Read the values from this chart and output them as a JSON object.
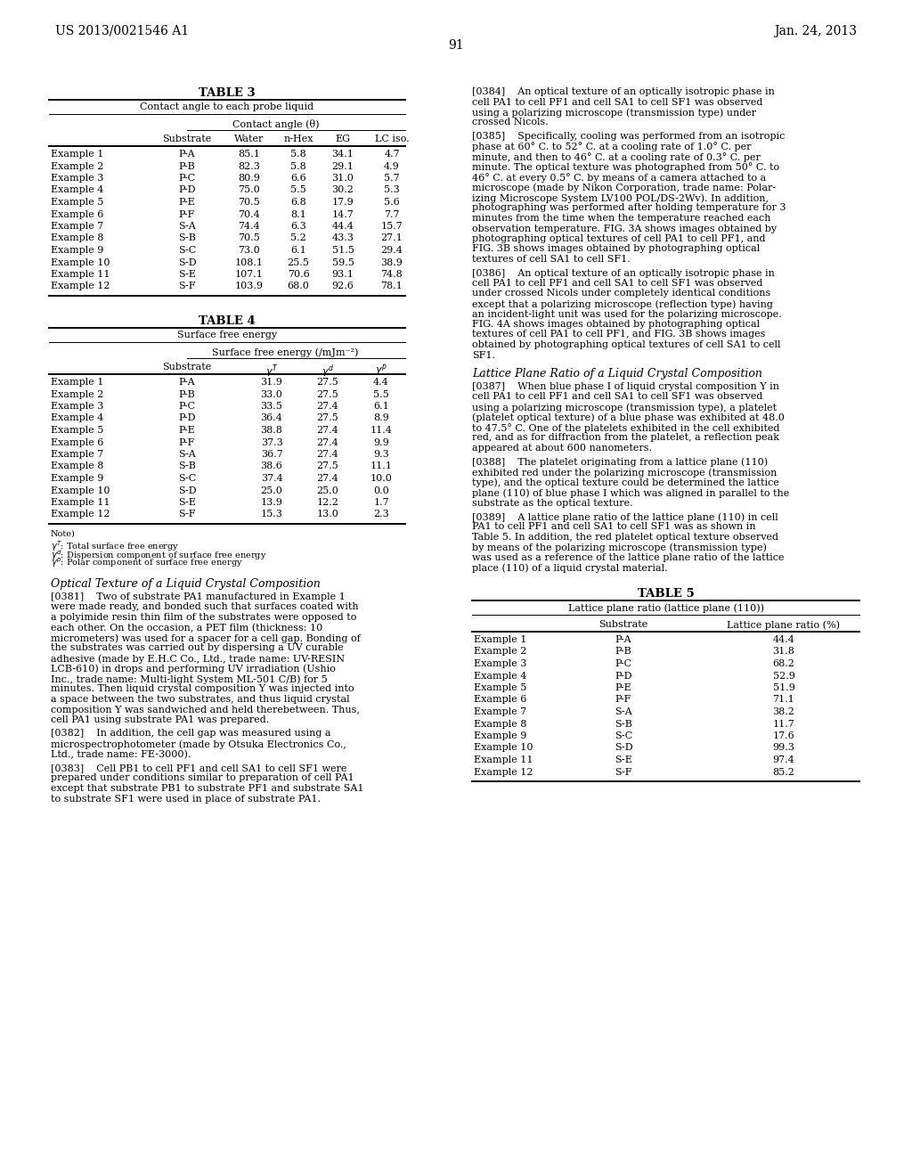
{
  "page_header_left": "US 2013/0021546 A1",
  "page_header_right": "Jan. 24, 2013",
  "page_number": "91",
  "background_color": "#ffffff",
  "table3": {
    "title": "TABLE 3",
    "subtitle": "Contact angle to each probe liquid",
    "col_group_header": "Contact angle (θ)",
    "col_headers": [
      "Substrate",
      "Water",
      "n-Hex",
      "EG",
      "LC iso."
    ],
    "rows": [
      [
        "Example 1",
        "P-A",
        "85.1",
        "5.8",
        "34.1",
        "4.7"
      ],
      [
        "Example 2",
        "P-B",
        "82.3",
        "5.8",
        "29.1",
        "4.9"
      ],
      [
        "Example 3",
        "P-C",
        "80.9",
        "6.6",
        "31.0",
        "5.7"
      ],
      [
        "Example 4",
        "P-D",
        "75.0",
        "5.5",
        "30.2",
        "5.3"
      ],
      [
        "Example 5",
        "P-E",
        "70.5",
        "6.8",
        "17.9",
        "5.6"
      ],
      [
        "Example 6",
        "P-F",
        "70.4",
        "8.1",
        "14.7",
        "7.7"
      ],
      [
        "Example 7",
        "S-A",
        "74.4",
        "6.3",
        "44.4",
        "15.7"
      ],
      [
        "Example 8",
        "S-B",
        "70.5",
        "5.2",
        "43.3",
        "27.1"
      ],
      [
        "Example 9",
        "S-C",
        "73.0",
        "6.1",
        "51.5",
        "29.4"
      ],
      [
        "Example 10",
        "S-D",
        "108.1",
        "25.5",
        "59.5",
        "38.9"
      ],
      [
        "Example 11",
        "S-E",
        "107.1",
        "70.6",
        "93.1",
        "74.8"
      ],
      [
        "Example 12",
        "S-F",
        "103.9",
        "68.0",
        "92.6",
        "78.1"
      ]
    ]
  },
  "table4": {
    "title": "TABLE 4",
    "subtitle": "Surface free energy",
    "col_group_header": "Surface free energy (/mJm⁻²)",
    "rows": [
      [
        "Example 1",
        "P-A",
        "31.9",
        "27.5",
        "4.4"
      ],
      [
        "Example 2",
        "P-B",
        "33.0",
        "27.5",
        "5.5"
      ],
      [
        "Example 3",
        "P-C",
        "33.5",
        "27.4",
        "6.1"
      ],
      [
        "Example 4",
        "P-D",
        "36.4",
        "27.5",
        "8.9"
      ],
      [
        "Example 5",
        "P-E",
        "38.8",
        "27.4",
        "11.4"
      ],
      [
        "Example 6",
        "P-F",
        "37.3",
        "27.4",
        "9.9"
      ],
      [
        "Example 7",
        "S-A",
        "36.7",
        "27.4",
        "9.3"
      ],
      [
        "Example 8",
        "S-B",
        "38.6",
        "27.5",
        "11.1"
      ],
      [
        "Example 9",
        "S-C",
        "37.4",
        "27.4",
        "10.0"
      ],
      [
        "Example 10",
        "S-D",
        "25.0",
        "25.0",
        "0.0"
      ],
      [
        "Example 11",
        "S-E",
        "13.9",
        "12.2",
        "1.7"
      ],
      [
        "Example 12",
        "S-F",
        "15.3",
        "13.0",
        "2.3"
      ]
    ]
  },
  "table5": {
    "title": "TABLE 5",
    "subtitle": "Lattice plane ratio (lattice plane (110))",
    "rows": [
      [
        "Example 1",
        "P-A",
        "44.4"
      ],
      [
        "Example 2",
        "P-B",
        "31.8"
      ],
      [
        "Example 3",
        "P-C",
        "68.2"
      ],
      [
        "Example 4",
        "P-D",
        "52.9"
      ],
      [
        "Example 5",
        "P-E",
        "51.9"
      ],
      [
        "Example 6",
        "P-F",
        "71.1"
      ],
      [
        "Example 7",
        "S-A",
        "38.2"
      ],
      [
        "Example 8",
        "S-B",
        "11.7"
      ],
      [
        "Example 9",
        "S-C",
        "17.6"
      ],
      [
        "Example 10",
        "S-D",
        "99.3"
      ],
      [
        "Example 11",
        "S-E",
        "97.4"
      ],
      [
        "Example 12",
        "S-F",
        "85.2"
      ]
    ]
  },
  "para_0381_lines": [
    "[0381]    Two of substrate PA1 manufactured in Example 1",
    "were made ready, and bonded such that surfaces coated with",
    "a polyimide resin thin film of the substrates were opposed to",
    "each other. On the occasion, a PET film (thickness: 10",
    "micrometers) was used for a spacer for a cell gap. Bonding of",
    "the substrates was carried out by dispersing a UV curable",
    "adhesive (made by E.H.C Co., Ltd., trade name: UV-RESIN",
    "LCB-610) in drops and performing UV irradiation (Ushio",
    "Inc., trade name: Multi-light System ML-501 C/B) for 5",
    "minutes. Then liquid crystal composition Y was injected into",
    "a space between the two substrates, and thus liquid crystal",
    "composition Y was sandwiched and held therebetween. Thus,",
    "cell PA1 using substrate PA1 was prepared."
  ],
  "para_0382_lines": [
    "[0382]    In addition, the cell gap was measured using a",
    "microspectrophotometer (made by Otsuka Electronics Co.,",
    "Ltd., trade name: FE-3000)."
  ],
  "para_0383_lines": [
    "[0383]    Cell PB1 to cell PF1 and cell SA1 to cell SF1 were",
    "prepared under conditions similar to preparation of cell PA1",
    "except that substrate PB1 to substrate PF1 and substrate SA1",
    "to substrate SF1 were used in place of substrate PA1."
  ],
  "para_0384_lines": [
    "[0384]    An optical texture of an optically isotropic phase in",
    "cell PA1 to cell PF1 and cell SA1 to cell SF1 was observed",
    "using a polarizing microscope (transmission type) under",
    "crossed Nicols."
  ],
  "para_0385_lines": [
    "[0385]    Specifically, cooling was performed from an isotropic",
    "phase at 60° C. to 52° C. at a cooling rate of 1.0° C. per",
    "minute, and then to 46° C. at a cooling rate of 0.3° C. per",
    "minute. The optical texture was photographed from 50° C. to",
    "46° C. at every 0.5° C. by means of a camera attached to a",
    "microscope (made by Nikon Corporation, trade name: Polar-",
    "izing Microscope System LV100 POL/DS-2Wv). In addition,",
    "photographing was performed after holding temperature for 3",
    "minutes from the time when the temperature reached each",
    "observation temperature. FIG. 3A shows images obtained by",
    "photographing optical textures of cell PA1 to cell PF1, and",
    "FIG. 3B shows images obtained by photographing optical",
    "textures of cell SA1 to cell SF1."
  ],
  "para_0386_lines": [
    "[0386]    An optical texture of an optically isotropic phase in",
    "cell PA1 to cell PF1 and cell SA1 to cell SF1 was observed",
    "under crossed Nicols under completely identical conditions",
    "except that a polarizing microscope (reflection type) having",
    "an incident-light unit was used for the polarizing microscope.",
    "FIG. 4A shows images obtained by photographing optical",
    "textures of cell PA1 to cell PF1, and FIG. 3B shows images",
    "obtained by photographing optical textures of cell SA1 to cell",
    "SF1."
  ],
  "para_0387_lines": [
    "[0387]    When blue phase I of liquid crystal composition Y in",
    "cell PA1 to cell PF1 and cell SA1 to cell SF1 was observed",
    "using a polarizing microscope (transmission type), a platelet",
    "(platelet optical texture) of a blue phase was exhibited at 48.0",
    "to 47.5° C. One of the platelets exhibited in the cell exhibited",
    "red, and as for diffraction from the platelet, a reflection peak",
    "appeared at about 600 nanometers."
  ],
  "para_0388_lines": [
    "[0388]    The platelet originating from a lattice plane (110)",
    "exhibited red under the polarizing microscope (transmission",
    "type), and the optical texture could be determined the lattice",
    "plane (110) of blue phase I which was aligned in parallel to the",
    "substrate as the optical texture."
  ],
  "para_0389_lines": [
    "[0389]    A lattice plane ratio of the lattice plane (110) in cell",
    "PA1 to cell PF1 and cell SA1 to cell SF1 was as shown in",
    "Table 5. In addition, the red platelet optical texture observed",
    "by means of the polarizing microscope (transmission type)",
    "was used as a reference of the lattice plane ratio of the lattice",
    "place (110) of a liquid crystal material."
  ]
}
